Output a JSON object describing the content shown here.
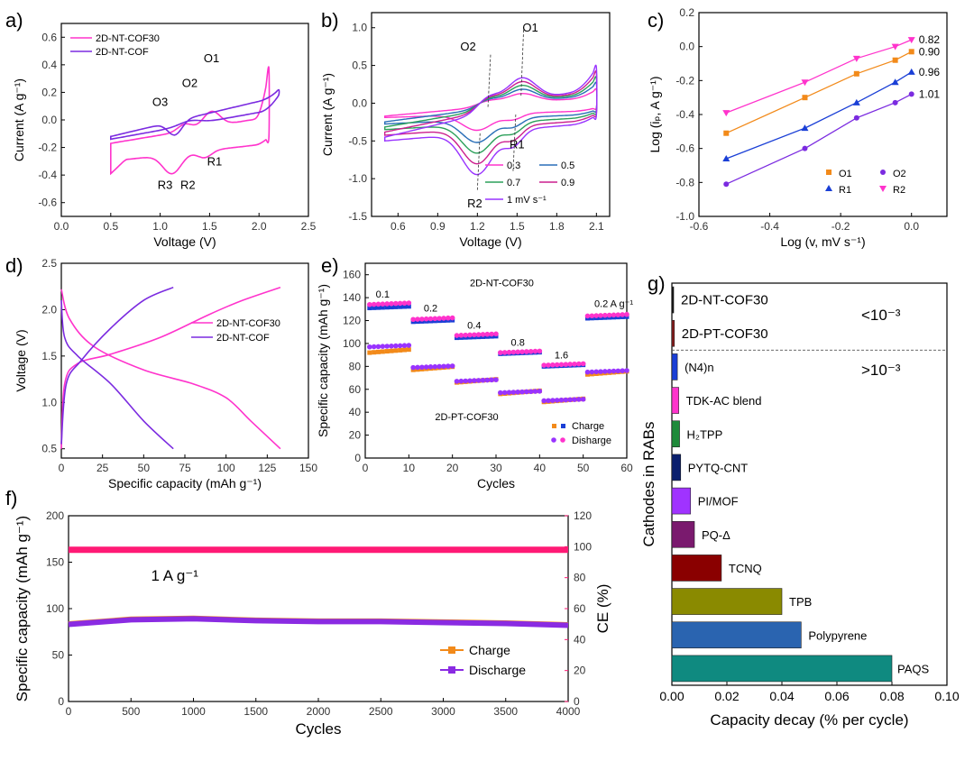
{
  "panels": {
    "a": {
      "letter": "a)"
    },
    "b": {
      "letter": "b)"
    },
    "c": {
      "letter": "c)"
    },
    "d": {
      "letter": "d)"
    },
    "e": {
      "letter": "e)"
    },
    "f": {
      "letter": "f)"
    },
    "g": {
      "letter": "g)"
    }
  },
  "chart_data": [
    {
      "id": "a",
      "type": "line",
      "xlabel": "Voltage (V)",
      "ylabel": "Current (A g⁻¹)",
      "xlim": [
        0,
        2.5
      ],
      "ylim": [
        -0.7,
        0.7
      ],
      "xticks": [
        "0.0",
        "0.5",
        "1.0",
        "1.5",
        "2.0",
        "2.5"
      ],
      "yticks": [
        "-0.6",
        "-0.4",
        "-0.2",
        "0.0",
        "0.2",
        "0.4",
        "0.6"
      ],
      "legend": [
        "2D-NT-COF30",
        "2D-NT-COF"
      ],
      "legend_position": "top-left",
      "annotations": [
        "O1",
        "O2",
        "O3",
        "R1",
        "R2",
        "R3"
      ],
      "colors": [
        "#ff33cc",
        "#7b2be0"
      ]
    },
    {
      "id": "b",
      "type": "line",
      "xlabel": "Voltage (V)",
      "ylabel": "Current (A g⁻¹)",
      "xlim": [
        0.4,
        2.2
      ],
      "ylim": [
        -1.5,
        1.2
      ],
      "xticks": [
        "0.6",
        "0.9",
        "1.2",
        "1.5",
        "1.8",
        "2.1"
      ],
      "yticks": [
        "-1.5",
        "-1.0",
        "-0.5",
        "0.0",
        "0.5",
        "1.0"
      ],
      "legend": [
        "0.3",
        "0.5",
        "0.7",
        "0.9",
        "1 mV s⁻¹"
      ],
      "legend_position": "bottom-right",
      "annotations": [
        "O1",
        "O2",
        "R1",
        "R2"
      ],
      "colors": [
        "#ff33cc",
        "#2a6fb8",
        "#2ca05a",
        "#cc1f8e",
        "#9933ff"
      ]
    },
    {
      "id": "c",
      "type": "scatter",
      "xlabel": "Log (v, mV s⁻¹)",
      "ylabel": "Log (iₚ, A g⁻¹)",
      "xlim": [
        -0.6,
        0.1
      ],
      "ylim": [
        -1.0,
        0.2
      ],
      "xticks": [
        "-0.6",
        "-0.4",
        "-0.2",
        "0.0"
      ],
      "yticks": [
        "-1.0",
        "-0.8",
        "-0.6",
        "-0.4",
        "-0.2",
        "0.0",
        "0.2"
      ],
      "x": [
        -0.523,
        -0.301,
        -0.155,
        -0.046,
        0.0
      ],
      "series": [
        {
          "name": "O1",
          "values": [
            -0.51,
            -0.3,
            -0.16,
            -0.08,
            -0.03
          ],
          "slope": "0.90",
          "color": "#f28a1a"
        },
        {
          "name": "O2",
          "values": [
            -0.81,
            -0.6,
            -0.42,
            -0.33,
            -0.28
          ],
          "slope": "1.01",
          "color": "#7b2be0"
        },
        {
          "name": "R1",
          "values": [
            -0.66,
            -0.48,
            -0.33,
            -0.21,
            -0.15
          ],
          "slope": "0.96",
          "color": "#1a3fd6"
        },
        {
          "name": "R2",
          "values": [
            -0.39,
            -0.21,
            -0.07,
            0.0,
            0.04
          ],
          "slope": "0.82",
          "color": "#ff33cc"
        }
      ],
      "legend_position": "bottom-right"
    },
    {
      "id": "d",
      "type": "line",
      "xlabel": "Specific capacity (mAh g⁻¹)",
      "ylabel": "Voltage (V)",
      "xlim": [
        0,
        150
      ],
      "ylim": [
        0.4,
        2.5
      ],
      "xticks": [
        "0",
        "25",
        "50",
        "75",
        "100",
        "125",
        "150"
      ],
      "yticks": [
        "0.5",
        "1.0",
        "1.5",
        "2.0",
        "2.5"
      ],
      "legend": [
        "2D-NT-COF30",
        "2D-NT-COF"
      ],
      "legend_position": "right",
      "colors": [
        "#ff33cc",
        "#7b2be0"
      ]
    },
    {
      "id": "e",
      "type": "scatter",
      "xlabel": "Cycles",
      "ylabel": "Specific capacity (mAh g⁻¹)",
      "xlim": [
        0,
        60
      ],
      "ylim": [
        0,
        170
      ],
      "xticks": [
        "0",
        "10",
        "20",
        "30",
        "40",
        "50",
        "60"
      ],
      "yticks": [
        "0",
        "20",
        "40",
        "60",
        "80",
        "100",
        "120",
        "140",
        "160"
      ],
      "rate_labels": [
        "0.1",
        "0.2",
        "0.4",
        "0.8",
        "1.6",
        "0.2 A g⁻¹"
      ],
      "segments_x": [
        [
          1,
          10
        ],
        [
          11,
          20
        ],
        [
          21,
          30
        ],
        [
          31,
          40
        ],
        [
          41,
          50
        ],
        [
          51,
          60
        ]
      ],
      "series": [
        {
          "name": "2D-NT-COF30 Charge",
          "values": [
            131,
            119,
            105,
            91,
            80,
            122
          ],
          "color": "#1a3fd6"
        },
        {
          "name": "2D-NT-COF30 Disharge",
          "values": [
            134,
            121,
            107,
            92,
            81,
            124
          ],
          "color": "#ff33cc"
        },
        {
          "name": "2D-PT-COF30 Charge",
          "values": [
            92,
            77,
            66,
            56,
            49,
            73
          ],
          "color": "#f28a1a"
        },
        {
          "name": "2D-PT-COF30 Disharge",
          "values": [
            97,
            79,
            67,
            57,
            50,
            75
          ],
          "color": "#9933ff"
        }
      ],
      "text_labels": [
        "2D-NT-COF30",
        "2D-PT-COF30"
      ],
      "legend": [
        "Charge",
        "Disharge"
      ],
      "legend_position": "bottom-right"
    },
    {
      "id": "f",
      "type": "line",
      "xlabel": "Cycles",
      "ylabel": "Specific capacity (mAh g⁻¹)",
      "ylabel2": "CE (%)",
      "xlim": [
        0,
        4000
      ],
      "ylim": [
        0,
        200
      ],
      "ylim2": [
        0,
        120
      ],
      "xticks": [
        "0",
        "500",
        "1000",
        "1500",
        "2000",
        "2500",
        "3000",
        "3500",
        "4000"
      ],
      "yticks": [
        "0",
        "50",
        "100",
        "150",
        "200"
      ],
      "yticks2": [
        "0",
        "20",
        "40",
        "60",
        "80",
        "100",
        "120"
      ],
      "annotation": "1 A g⁻¹",
      "x": [
        0,
        500,
        1000,
        1500,
        2000,
        2500,
        3000,
        3500,
        4000
      ],
      "series": [
        {
          "name": "Charge",
          "values": [
            84,
            89,
            90,
            88,
            87,
            87,
            86,
            85,
            83
          ],
          "color": "#f28a1a"
        },
        {
          "name": "Discharge",
          "values": [
            83,
            88,
            89,
            87,
            86,
            86,
            85,
            84,
            82
          ],
          "color": "#8a2be2"
        },
        {
          "name": "CE",
          "values": [
            98,
            98,
            98,
            98,
            98,
            98,
            98,
            98,
            98
          ],
          "color": "#ff1a75"
        }
      ],
      "legend": [
        "Charge",
        "Discharge"
      ],
      "legend_position": "bottom-right",
      "ylabel_color": "#9933ff",
      "ylabel2_color": "#ff1a75"
    },
    {
      "id": "g",
      "type": "bar",
      "xlabel": "Capacity decay (% per cycle)",
      "ylabel": "Cathodes in RABs",
      "xlim": [
        0,
        0.1
      ],
      "xticks": [
        "0.00",
        "0.02",
        "0.04",
        "0.06",
        "0.08",
        "0.10"
      ],
      "categories": [
        "2D-NT-COF30",
        "2D-PT-COF30",
        "(N4)n",
        "TDK-AC blend",
        "H₂TPP",
        "PYTQ-CNT",
        "PI/MOF",
        "PQ-Δ",
        "TCNQ",
        "TPB",
        "Polypyrene",
        "PAQS"
      ],
      "values": [
        0.0006,
        0.0009,
        0.002,
        0.0025,
        0.0028,
        0.0032,
        0.0068,
        0.0082,
        0.018,
        0.04,
        0.047,
        0.08
      ],
      "colors": [
        "#111111",
        "#8b1a1a",
        "#1a3fd6",
        "#ff33cc",
        "#1f8a3a",
        "#0a1f6e",
        "#a033ff",
        "#7a1a6e",
        "#8a0000",
        "#8a8a00",
        "#2a64b0",
        "#0f8a80"
      ],
      "threshold_labels": [
        "<10⁻³",
        ">10⁻³"
      ]
    }
  ]
}
